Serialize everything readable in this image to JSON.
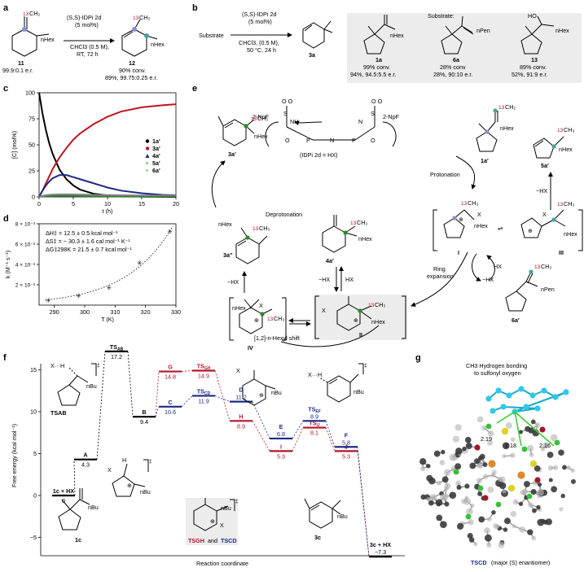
{
  "panels": {
    "a": "a",
    "b": "b",
    "c": "c",
    "d": "d",
    "e": "e",
    "f": "f",
    "g": "g"
  },
  "a": {
    "cond1": "(S,S)-IDPi 2d",
    "cond2": "(5 mol%)",
    "cond3": "CHCl3 (0.5 M),",
    "cond4": "RT, 72 h",
    "sm_label": "11",
    "sm_er": "99.9:0.1 e.r.",
    "pr_label": "12",
    "pr_conv": "90% conv.",
    "pr_yield": "89%, 99.75:0.25 e.r.",
    "iso13": "13",
    "hex": "nHex"
  },
  "b": {
    "substrate_word": "Substrate",
    "cond1": "(S,S)-IDPi 2d",
    "cond2": "(5 mol%)",
    "cond3": "CHCl3, (0.5 M),",
    "cond4": "50 °C, 24 h",
    "product_label": "3a",
    "box_title": "Substrate:",
    "substrates": [
      {
        "label": "1a",
        "conv": "99% conv.",
        "result": "94%, 94.5:5.5 e.r.",
        "group": "nHex"
      },
      {
        "label": "6a",
        "conv": "28% conv",
        "result": "28%, 90:10 e.r.",
        "group": "nPen"
      },
      {
        "label": "13",
        "conv": "89% conv.",
        "result": "52%, 91:9 e.r.",
        "group": "nHex",
        "extra": "HO"
      }
    ]
  },
  "c": {
    "ylabel": "[C] (mol%)",
    "xlabel": "t (h)",
    "yticks": [
      "0",
      "25",
      "50",
      "75",
      "100"
    ],
    "xticks": [
      "0",
      "5",
      "10",
      "15",
      "20"
    ],
    "legend": [
      {
        "label": "1a′",
        "color": "#000000",
        "marker": "circle"
      },
      {
        "label": "3a′",
        "color": "#c0141c",
        "marker": "circle"
      },
      {
        "label": "4a′",
        "color": "#1c2a86",
        "marker": "triangle"
      },
      {
        "label": "5a′",
        "color": "#2a8a2a",
        "marker": "cross"
      },
      {
        "label": "6a′",
        "color": "#808080",
        "marker": "cross"
      }
    ]
  },
  "chart_data": [
    {
      "type": "line",
      "xlabel": "t (h)",
      "ylabel": "[C] (mol%)",
      "xlim": [
        0,
        20
      ],
      "ylim": [
        0,
        100
      ],
      "x": [
        0,
        0.5,
        1,
        1.5,
        2,
        3,
        4,
        5,
        6,
        8,
        10,
        12,
        15,
        18,
        20
      ],
      "series": [
        {
          "name": "1a′",
          "values": [
            100,
            80,
            64,
            51,
            41,
            26,
            17,
            11,
            7,
            3,
            1.5,
            0.7,
            0.3,
            0.1,
            0
          ]
        },
        {
          "name": "3a′",
          "values": [
            0,
            6,
            13,
            20,
            27,
            38,
            47,
            55,
            61,
            70,
            77,
            82,
            86,
            88,
            89
          ]
        },
        {
          "name": "4a′",
          "values": [
            0,
            6,
            11,
            15,
            18,
            21,
            21,
            19,
            17,
            13,
            9,
            6,
            3.5,
            2,
            1.5
          ]
        },
        {
          "name": "5a′",
          "values": [
            0,
            0.5,
            0.8,
            1,
            1.1,
            1.2,
            1.2,
            1.1,
            1,
            0.9,
            0.8,
            0.7,
            0.6,
            0.5,
            0.5
          ]
        },
        {
          "name": "6a′",
          "values": [
            0,
            1,
            1.6,
            2,
            2.2,
            2.4,
            2.4,
            2.3,
            2.2,
            2,
            1.8,
            1.6,
            1.4,
            1.3,
            1.2
          ]
        }
      ]
    },
    {
      "type": "scatter",
      "xlabel": "T (K)",
      "ylabel": "k (M⁻¹ s⁻¹)",
      "xlim": [
        285,
        330
      ],
      "ylim": [
        0,
        0.008
      ],
      "x": [
        288,
        298,
        308,
        318,
        328
      ],
      "series": [
        {
          "name": "",
          "values": [
            0.00053,
            0.00098,
            0.00178,
            0.0042,
            0.0073
          ]
        }
      ]
    },
    {
      "type": "line",
      "ylabel": "Free energy (kcal mol⁻¹)",
      "xlabel": "Reaction coordinate",
      "ylim": [
        -8,
        19
      ],
      "states": [
        {
          "name": "1c + HX",
          "value": 0,
          "path": "common"
        },
        {
          "name": "A",
          "value": 4.3,
          "path": "common"
        },
        {
          "name": "TSAB",
          "value": 17.2,
          "path": "common"
        },
        {
          "name": "B",
          "value": 9.4,
          "path": "common"
        },
        {
          "name": "G",
          "value": 14.8,
          "path": "red"
        },
        {
          "name": "TSGH",
          "value": 14.9,
          "path": "red"
        },
        {
          "name": "H",
          "value": 8.9,
          "path": "red"
        },
        {
          "name": "I",
          "value": 5.3,
          "path": "red"
        },
        {
          "name": "TSIJ",
          "value": 8.1,
          "path": "red"
        },
        {
          "name": "J",
          "value": 5.3,
          "path": "red"
        },
        {
          "name": "C",
          "value": 10.6,
          "path": "blue"
        },
        {
          "name": "TSCD",
          "value": 11.9,
          "path": "blue"
        },
        {
          "name": "D",
          "value": 11.2,
          "path": "blue"
        },
        {
          "name": "E",
          "value": 6.8,
          "path": "blue"
        },
        {
          "name": "TSEF",
          "value": 8.9,
          "path": "blue"
        },
        {
          "name": "F",
          "value": 5.8,
          "path": "blue"
        },
        {
          "name": "3c + HX",
          "value": -7.3,
          "path": "common"
        }
      ]
    }
  ],
  "d": {
    "ylabel": "k (M⁻¹ s⁻¹)",
    "xlabel": "T (K)",
    "yticks": [
      "2 × 10⁻³",
      "4 × 10⁻³",
      "6 × 10⁻³",
      "8 × 10⁻³"
    ],
    "xticks": [
      "290",
      "300",
      "310",
      "320",
      "330"
    ],
    "params": [
      "ΔH‡ = 12.5 ± 0.5 kcal mol⁻¹",
      "ΔS‡ = − 30.3 ± 1.6 cal mol⁻¹ K⁻¹",
      "ΔG‡298K = 21.5 ± 0.7 kcal mol⁻¹"
    ]
  },
  "e": {
    "catalyst": "(IDPi 2d = HX)",
    "np_left": "2-NpF",
    "np_right": "2-NpF",
    "nh": "NH",
    "protonation": "Protonation",
    "deprotonation": "Deprotonation",
    "minus_hx": "−HX",
    "hx": "HX",
    "ring_expansion": "Ring expansion",
    "shift": "[1,2]-n-Hexyl shift",
    "labels": {
      "s1a": "1a′",
      "s3a": "3a′",
      "s3a2": "3a″",
      "s4a": "4a′",
      "s5a": "5a′",
      "s6a": "6a′",
      "I": "I",
      "II": "II",
      "III": "III",
      "IV": "IV"
    },
    "ch3": "13CH3",
    "hex": "nHex",
    "pen": "nPen",
    "x": "X"
  },
  "f": {
    "ylabel": "Free energy (kcal mol⁻¹)",
    "xlabel": "Reaction coordinate",
    "yticks": [
      "−5",
      "0",
      "5",
      "10",
      "15"
    ],
    "inset_caption_1": "TSGH",
    "inset_caption_and": "and",
    "inset_caption_2": "TSCD",
    "mol_1c": "1c",
    "mol_3c": "3c",
    "bu": "nBu"
  },
  "g": {
    "annotation_1": "CH3 Hydrogen bonding",
    "annotation_2": "to sulfonyl oxygen",
    "distances": [
      "2.19",
      "2.18",
      "2.16"
    ],
    "caption_ts": "TSCD",
    "caption_rest": "(major (S) enantiomer)"
  },
  "colors": {
    "red": "#b0172b",
    "navy": "#1c2a86",
    "green": "#2a8a2a",
    "gray": "#808080",
    "cyan": "#30c8e6"
  }
}
